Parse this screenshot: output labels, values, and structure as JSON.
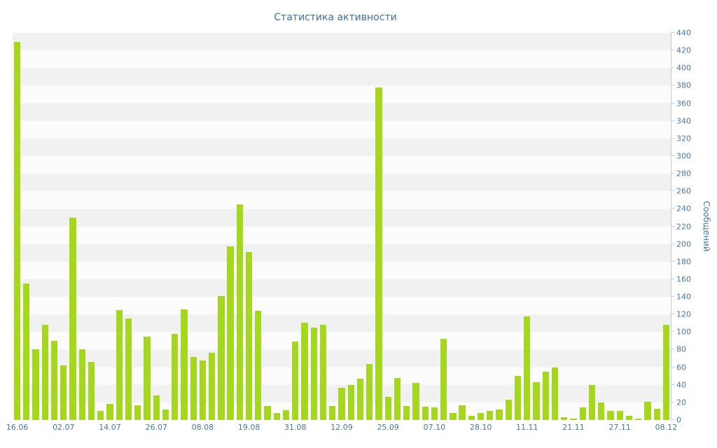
{
  "chart": {
    "title": "Статистика активности"
  },
  "chart_data": {
    "type": "bar",
    "title": "Статистика активности",
    "xlabel": "",
    "ylabel": "Сообщений",
    "ylim": [
      0,
      440
    ],
    "ytick_step": 20,
    "grid": "horizontal-stripes",
    "legend": "none",
    "bar_color": "#a6d71f",
    "label_color": "#4a76a4",
    "title_color": "#3d6e9e",
    "x_tick_labels": [
      "16.06",
      "02.07",
      "14.07",
      "26.07",
      "08.08",
      "19.08",
      "31.08",
      "12.09",
      "25.09",
      "07.10",
      "28.10",
      "11.11",
      "21.11",
      "27.11",
      "08.12"
    ],
    "x_tick_indices": [
      0,
      5,
      10,
      15,
      20,
      25,
      30,
      35,
      40,
      45,
      50,
      55,
      60,
      65,
      70
    ],
    "values": [
      430,
      155,
      80,
      108,
      90,
      62,
      230,
      80,
      66,
      10,
      18,
      125,
      115,
      17,
      95,
      28,
      12,
      98,
      126,
      72,
      68,
      76,
      141,
      197,
      245,
      191,
      124,
      16,
      8,
      11,
      89,
      111,
      105,
      108,
      16,
      37,
      40,
      47,
      64,
      378,
      26,
      48,
      16,
      42,
      15,
      14,
      92,
      8,
      17,
      5,
      8,
      10,
      12,
      23,
      50,
      118,
      43,
      55,
      60,
      3,
      2,
      14,
      40,
      20,
      10,
      10,
      5,
      2,
      21,
      13,
      108
    ]
  }
}
